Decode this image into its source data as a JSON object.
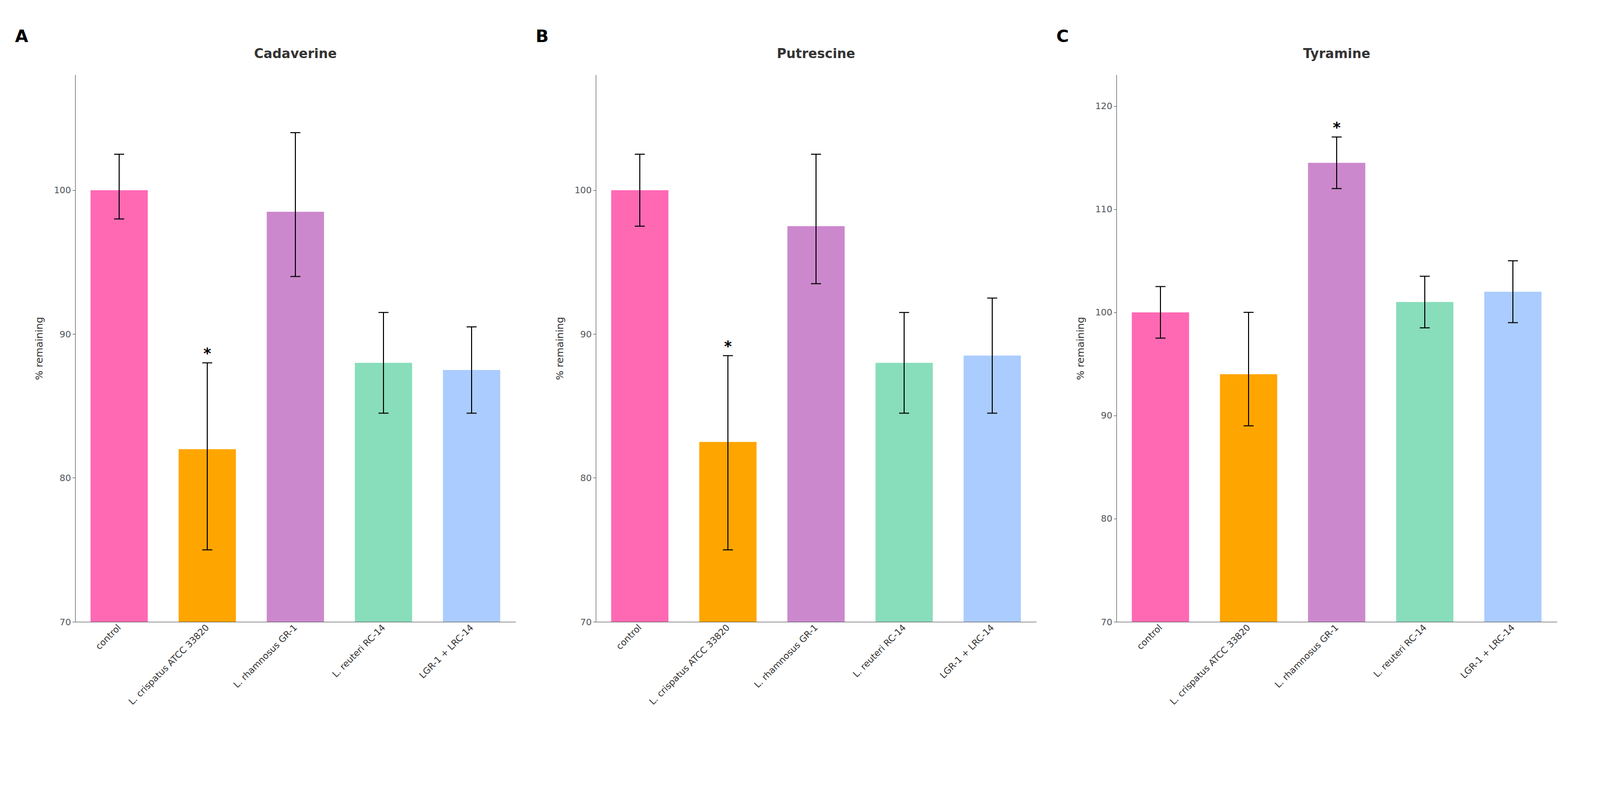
{
  "chart_data": [
    {
      "type": "bar",
      "title": "Cadaverine",
      "ylabel": "% remaining",
      "categories": [
        "control",
        "L. crispatus ATCC 33820",
        "L. rhamnosus GR-1",
        "L. reuteri RC-14",
        "LGR-1 + LRC-14"
      ],
      "values": [
        100.0,
        82.0,
        98.5,
        88.0,
        87.5
      ],
      "error_low": [
        2.0,
        7.0,
        4.5,
        3.5,
        3.0
      ],
      "error_high": [
        2.5,
        6.0,
        5.5,
        3.5,
        3.0
      ],
      "colors": [
        "#FF69B4",
        "#FFA500",
        "#CC88CC",
        "#88DDBB",
        "#AACCFF"
      ],
      "ylim": [
        70,
        108
      ],
      "yticks": [
        70,
        80,
        90,
        100
      ],
      "grid": false,
      "annotations": [
        {
          "text": "A"
        },
        {
          "text": "*",
          "x": "L. crispatus ATCC 33820"
        }
      ]
    },
    {
      "type": "bar",
      "title": "Putrescine",
      "ylabel": "% remaining",
      "categories": [
        "control",
        "L. crispatus ATCC 33820",
        "L. rhamnosus GR-1",
        "L. reuteri RC-14",
        "LGR-1 + LRC-14"
      ],
      "values": [
        100.0,
        82.5,
        97.5,
        88.0,
        88.5
      ],
      "error_low": [
        2.5,
        7.5,
        4.0,
        3.5,
        4.0
      ],
      "error_high": [
        2.5,
        6.0,
        5.0,
        3.5,
        4.0
      ],
      "colors": [
        "#FF69B4",
        "#FFA500",
        "#CC88CC",
        "#88DDBB",
        "#AACCFF"
      ],
      "ylim": [
        70,
        108
      ],
      "yticks": [
        70,
        80,
        90,
        100
      ],
      "grid": false,
      "annotations": [
        {
          "text": "B"
        },
        {
          "text": "*",
          "x": "L. crispatus ATCC 33820"
        }
      ]
    },
    {
      "type": "bar",
      "title": "Tyramine",
      "ylabel": "% remaining",
      "categories": [
        "control",
        "L. crispatus ATCC 33820",
        "L. rhamnosus GR-1",
        "L. reuteri RC-14",
        "LGR-1 + LRC-14"
      ],
      "values": [
        100.0,
        94.0,
        114.5,
        101.0,
        102.0
      ],
      "error_low": [
        2.5,
        5.0,
        2.5,
        2.5,
        3.0
      ],
      "error_high": [
        2.5,
        6.0,
        2.5,
        2.5,
        3.0
      ],
      "colors": [
        "#FF69B4",
        "#FFA500",
        "#CC88CC",
        "#88DDBB",
        "#AACCFF"
      ],
      "ylim": [
        70,
        123
      ],
      "yticks": [
        70,
        80,
        90,
        100,
        110,
        120
      ],
      "grid": false,
      "annotations": [
        {
          "text": "C"
        },
        {
          "text": "*",
          "x": "L. rhamnosus GR-1"
        }
      ]
    }
  ]
}
